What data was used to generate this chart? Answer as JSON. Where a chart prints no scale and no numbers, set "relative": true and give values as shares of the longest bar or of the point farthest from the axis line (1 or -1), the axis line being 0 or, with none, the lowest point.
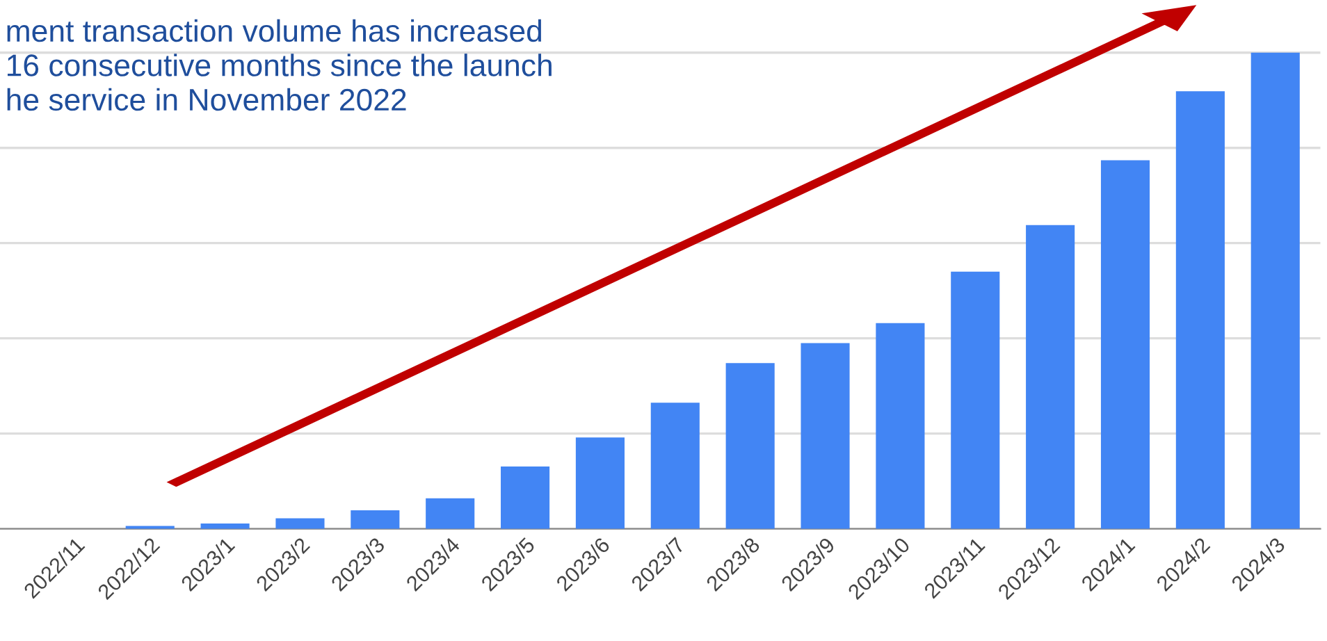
{
  "chart_data": {
    "type": "bar",
    "relative": true,
    "grid": "y",
    "categories": [
      "2022/11",
      "2022/12",
      "2023/1",
      "2023/2",
      "2023/3",
      "2023/4",
      "2023/5",
      "2023/6",
      "2023/7",
      "2023/8",
      "2023/9",
      "2023/10",
      "2023/11",
      "2023/12",
      "2024/1",
      "2024/2",
      "2024/3"
    ],
    "values": [
      0,
      0.006,
      0.011,
      0.022,
      0.039,
      0.064,
      0.131,
      0.192,
      0.265,
      0.348,
      0.39,
      0.432,
      0.54,
      0.638,
      0.774,
      0.919,
      1
    ],
    "color": "#4285f4",
    "annotations": [
      "ment transaction volume has increased\n16 consecutive months since the launch\nhe service in November 2022"
    ]
  }
}
